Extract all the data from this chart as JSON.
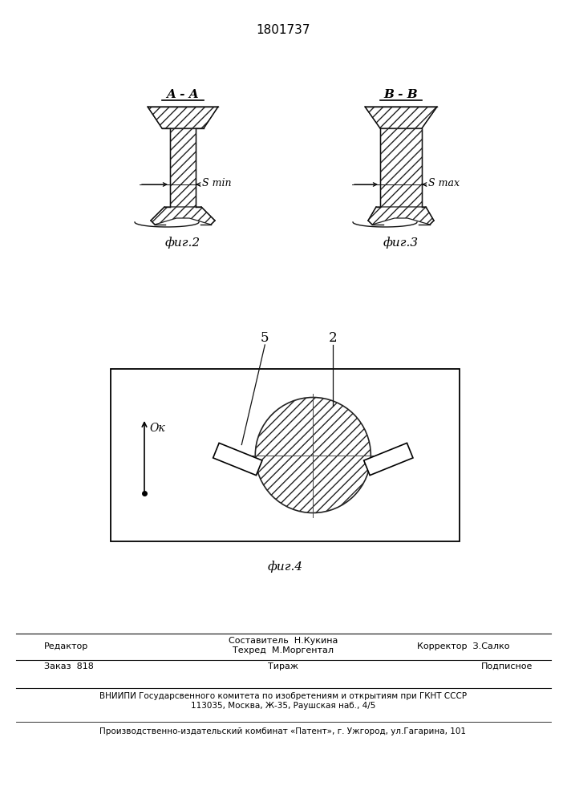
{
  "title": "1801737",
  "fig2_label": "A - A",
  "fig3_label": "B - B",
  "fig2_caption": "фиг.2",
  "fig3_caption": "фиг.3",
  "fig4_caption": "фиг.4",
  "smin_label": "S min",
  "smax_label": "S max",
  "label5": "5",
  "label2": "2",
  "ok_label": "Ок",
  "footer_line1": "Составитель  Н.Кукина",
  "footer_line2": "Техред  М.Моргентал",
  "footer_editor": "Редактор",
  "footer_corrector": "Корректор  З.Салко",
  "footer_order": "Заказ  818",
  "footer_tirazh": "Тираж",
  "footer_podpisnoe": "Подписное",
  "footer_vnipi": "ВНИИПИ Государсвенного комитета по изобретениям и открытиям при ГКНТ СССР",
  "footer_address": "113035, Москва, Ж-35, Раушская наб., 4/5",
  "footer_factory": "Производственно-издательский комбинат «Патент», г. Ужгород, ул.Гагарина, 101"
}
